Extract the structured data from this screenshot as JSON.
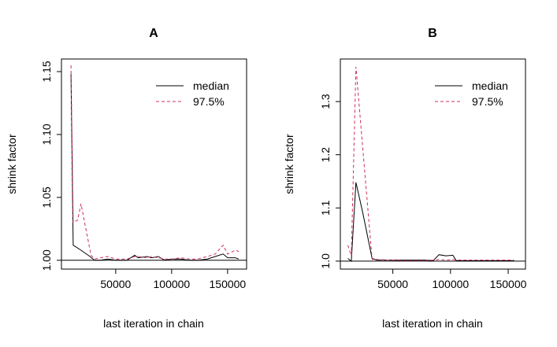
{
  "chart_data": [
    {
      "type": "line",
      "title": "A",
      "xlabel": "last iteration in chain",
      "ylabel": "shrink factor",
      "xlim": [
        1500,
        167000
      ],
      "ylim": [
        0.993,
        1.16
      ],
      "x_ticks": [
        50000,
        100000,
        150000
      ],
      "x_tick_labels": [
        "50000",
        "100000",
        "150000"
      ],
      "y_ticks": [
        1.0,
        1.05,
        1.1,
        1.15
      ],
      "y_tick_labels": [
        "1.00",
        "1.05",
        "1.10",
        "1.15"
      ],
      "reference_line": 1.0,
      "legend_position": "top-right",
      "series": [
        {
          "name": "median",
          "color": "#000000",
          "dash": "solid",
          "x": [
            10000,
            12000,
            19000,
            27000,
            31000,
            36000,
            43000,
            50000,
            60000,
            67000,
            70000,
            78000,
            82000,
            88000,
            94000,
            100000,
            108000,
            116000,
            123000,
            132000,
            139000,
            146000,
            150000,
            157000,
            160000
          ],
          "y": [
            1.148,
            1.012,
            1.008,
            1.003,
            1.0,
            1.0,
            1.001,
            1.0,
            1.0,
            1.004,
            1.002,
            1.003,
            1.002,
            1.003,
            1.0,
            1.001,
            1.001,
            1.0,
            1.0,
            1.001,
            1.003,
            1.005,
            1.002,
            1.002,
            1.001
          ]
        },
        {
          "name": "97.5%",
          "color": "#cd2f5a",
          "dash": "dashed",
          "x": [
            10000,
            12000,
            16000,
            19000,
            24000,
            28000,
            31000,
            36000,
            43000,
            50000,
            60000,
            67000,
            70000,
            78000,
            82000,
            88000,
            94000,
            100000,
            108000,
            116000,
            123000,
            132000,
            139000,
            146000,
            150000,
            157000,
            160000
          ],
          "y": [
            1.155,
            1.03,
            1.032,
            1.045,
            1.022,
            1.004,
            1.001,
            1.002,
            1.003,
            1.001,
            1.001,
            1.003,
            1.003,
            1.002,
            1.003,
            1.002,
            1.001,
            1.001,
            1.002,
            1.001,
            1.001,
            1.003,
            1.005,
            1.012,
            1.005,
            1.008,
            1.007
          ]
        }
      ]
    },
    {
      "type": "line",
      "title": "B",
      "xlabel": "last iteration in chain",
      "ylabel": "shrink factor",
      "xlim": [
        4500,
        165000
      ],
      "ylim": [
        0.985,
        1.38
      ],
      "x_ticks": [
        50000,
        100000,
        150000
      ],
      "x_tick_labels": [
        "50000",
        "100000",
        "150000"
      ],
      "y_ticks": [
        1.0,
        1.1,
        1.2,
        1.3
      ],
      "y_tick_labels": [
        "1.0",
        "1.1",
        "1.2",
        "1.3"
      ],
      "reference_line": 1.0,
      "legend_position": "top-right",
      "series": [
        {
          "name": "median",
          "color": "#000000",
          "dash": "solid",
          "x": [
            11000,
            14000,
            18000,
            24000,
            32000,
            36000,
            45000,
            60000,
            78000,
            85000,
            90000,
            96000,
            102000,
            105000,
            120000,
            140000,
            155000
          ],
          "y": [
            1.005,
            1.0,
            1.148,
            1.09,
            1.005,
            1.002,
            1.002,
            1.002,
            1.002,
            1.001,
            1.012,
            1.01,
            1.011,
            1.001,
            1.001,
            1.001,
            1.001
          ]
        },
        {
          "name": "97.5%",
          "color": "#cd2f5a",
          "dash": "dashed",
          "x": [
            11000,
            14000,
            18000,
            24000,
            32000,
            36000,
            45000,
            60000,
            78000,
            85000,
            90000,
            96000,
            102000,
            105000,
            120000,
            140000,
            155000
          ],
          "y": [
            1.03,
            1.01,
            1.365,
            1.21,
            1.003,
            1.003,
            1.002,
            1.001,
            1.001,
            1.002,
            1.003,
            1.002,
            1.003,
            1.002,
            1.002,
            1.002,
            1.002
          ]
        }
      ]
    }
  ]
}
